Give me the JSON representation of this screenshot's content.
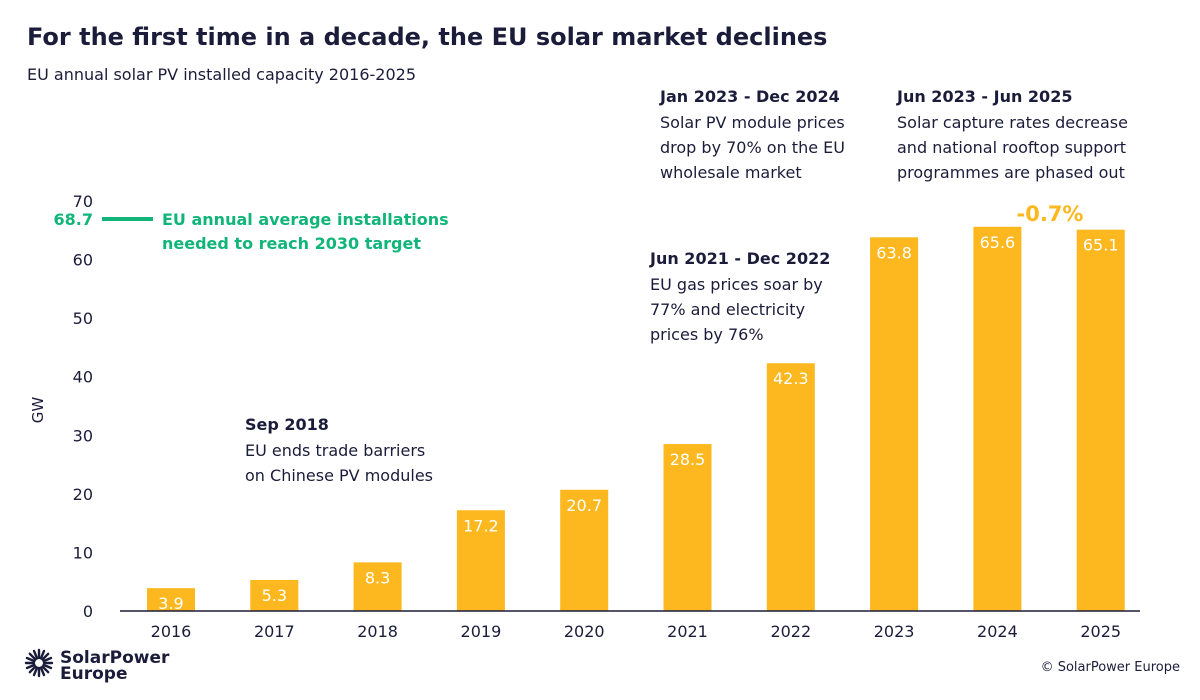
{
  "chart_data": {
    "type": "bar",
    "title": "For the first time in a decade, the EU solar market declines",
    "subtitle": "EU annual solar PV installed capacity 2016-2025",
    "ylabel": "GW",
    "xlabel": "",
    "ylim": [
      0,
      70
    ],
    "yticks": [
      "0",
      "10",
      "20",
      "30",
      "40",
      "50",
      "60",
      "70"
    ],
    "categories": [
      "2016",
      "2017",
      "2018",
      "2019",
      "2020",
      "2021",
      "2022",
      "2023",
      "2024",
      "2025"
    ],
    "values": [
      3.9,
      5.3,
      8.3,
      17.2,
      20.7,
      28.5,
      42.3,
      63.8,
      65.6,
      65.1
    ],
    "data_labels": [
      "3.9",
      "5.3",
      "8.3",
      "17.2",
      "20.7",
      "28.5",
      "42.3",
      "63.8",
      "65.6",
      "65.1"
    ],
    "grid": false,
    "bar_color": "#fdb71f",
    "reference_line": {
      "value": 68.7,
      "label_value": "68.7",
      "text_line1": "EU annual average installations",
      "text_line2": "needed to reach 2030 target",
      "color": "#11b57a"
    },
    "change_label": {
      "text": "-0.7%",
      "color": "#fdb71f"
    },
    "annotations": [
      {
        "heading": "Sep 2018",
        "lines": [
          "EU ends trade barriers",
          "on Chinese PV modules"
        ]
      },
      {
        "heading": "Jun 2021 - Dec 2022",
        "lines": [
          "EU gas prices soar by",
          "77% and electricity",
          "prices by 76%"
        ]
      },
      {
        "heading": "Jan 2023 - Dec 2024",
        "lines": [
          "Solar PV module prices",
          "drop by 70% on the EU",
          "wholesale market"
        ]
      },
      {
        "heading": "Jun 2023 - Jun 2025",
        "lines": [
          "Solar capture rates decrease",
          "and national rooftop support",
          "programmes are phased out"
        ]
      }
    ]
  },
  "footer": {
    "logo_line1": "SolarPower",
    "logo_line2": "Europe",
    "copyright": "© SolarPower Europe"
  }
}
